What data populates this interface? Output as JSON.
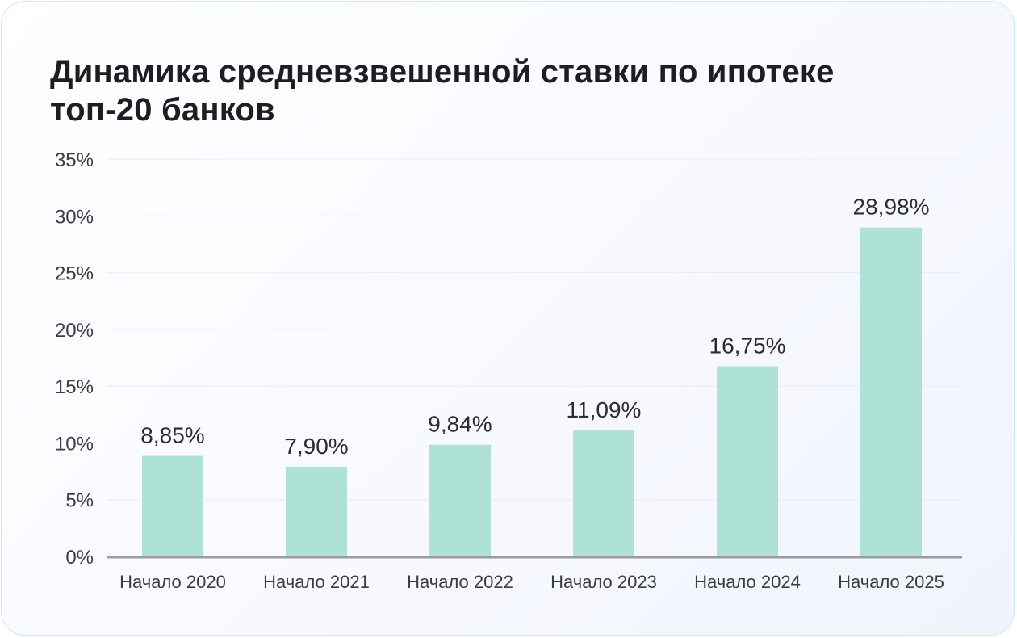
{
  "chart_data": {
    "type": "bar",
    "title_lines": [
      "Динамика средневзвешенной ставки по ипотеке",
      "топ-20 банков"
    ],
    "categories": [
      "Начало 2020",
      "Начало 2021",
      "Начало 2022",
      "Начало 2023",
      "Начало 2024",
      "Начало 2025"
    ],
    "values": [
      8.85,
      7.9,
      9.84,
      11.09,
      16.75,
      28.98
    ],
    "data_labels": [
      "8,85%",
      "7,90%",
      "9,84%",
      "11,09%",
      "16,75%",
      "28,98%"
    ],
    "yticks": [
      0,
      5,
      10,
      15,
      20,
      25,
      30,
      35
    ],
    "ytick_labels": [
      "0%",
      "5%",
      "10%",
      "15%",
      "20%",
      "25%",
      "30%",
      "35%"
    ],
    "ylim": [
      0,
      35
    ],
    "xlabel": "",
    "ylabel": "",
    "grid": true,
    "legend": "none",
    "colors": {
      "bar": "#aee2d6",
      "axis": "#9a9ca0",
      "grid": "#e9ecf1",
      "border": "#c9ece3"
    }
  }
}
